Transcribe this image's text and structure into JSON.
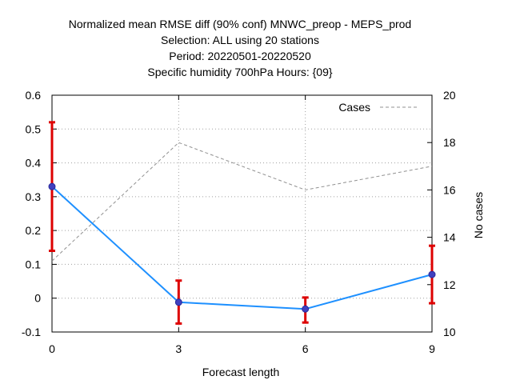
{
  "chart_data": {
    "type": "line",
    "title_lines": [
      "Normalized mean RMSE diff (90% conf) MNWC_preop - MEPS_prod",
      "Selection: ALL using    20 stations",
      "Period: 20220501-20220520",
      "Specific humidity 700hPa   Hours: {09}"
    ],
    "xlabel": "Forecast length",
    "ylabel_left": "",
    "ylabel_right": "No cases",
    "x": [
      0,
      3,
      6,
      9
    ],
    "xticks": [
      "0",
      "3",
      "6",
      "9"
    ],
    "xlim": [
      0,
      9
    ],
    "ylim": [
      -0.1,
      0.6
    ],
    "yticks": [
      "-0.1",
      "0",
      "0.1",
      "0.2",
      "0.3",
      "0.4",
      "0.5",
      "0.6"
    ],
    "ylim_right": [
      10,
      20
    ],
    "yticks_right": [
      "10",
      "12",
      "14",
      "16",
      "18",
      "20"
    ],
    "grid": true,
    "legend_position": "top-right",
    "series": [
      {
        "values": [
          0.33,
          -0.012,
          -0.032,
          0.07
        ],
        "error_low": [
          0.14,
          -0.075,
          -0.072,
          -0.015
        ],
        "error_high": [
          0.52,
          0.052,
          0.002,
          0.155
        ],
        "color": "#1e90ff",
        "marker_color": "#4040c0",
        "error_color": "#dd0000",
        "axis": "left"
      },
      {
        "name": "Cases",
        "values": [
          13,
          18,
          16,
          17
        ],
        "color": "#909090",
        "style": "dashed",
        "axis": "right"
      }
    ]
  }
}
